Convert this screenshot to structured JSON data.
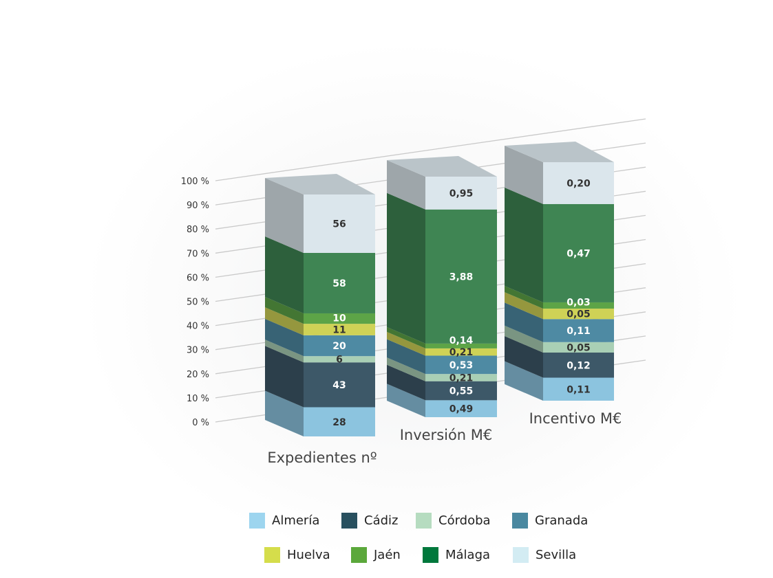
{
  "chart_data": {
    "type": "bar",
    "stacked": true,
    "normalized": true,
    "three_d": true,
    "y_ticks": [
      "0 %",
      "10 %",
      "20 %",
      "30 %",
      "40 %",
      "50 %",
      "60 %",
      "70 %",
      "80 %",
      "90 %",
      "100 %"
    ],
    "ylim": [
      0,
      100
    ],
    "grid": true,
    "legend_position": "bottom",
    "categories": [
      "Expedientes nº",
      "Inversión M€",
      "Incentivo M€"
    ],
    "series": [
      {
        "name": "Almería",
        "color": "#9dd5ef",
        "bar_color": "#8cc4df",
        "values": [
          28,
          0.49,
          0.11
        ],
        "labels": [
          "28",
          "0,49",
          "0,11"
        ],
        "label_color": "#333"
      },
      {
        "name": "Cádiz",
        "color": "#28505f",
        "bar_color": "#3d5868",
        "values": [
          43,
          0.55,
          0.12
        ],
        "labels": [
          "43",
          "0,55",
          "0,12"
        ],
        "label_color": "#fff"
      },
      {
        "name": "Córdoba",
        "color": "#b6dcc0",
        "bar_color": "#a9cfb5",
        "values": [
          6,
          0.21,
          0.05
        ],
        "labels": [
          "6",
          "0,21",
          "0,05"
        ],
        "label_color": "#333"
      },
      {
        "name": "Granada",
        "color": "#4a88a0",
        "bar_color": "#4e8aa3",
        "values": [
          20,
          0.53,
          0.11
        ],
        "labels": [
          "20",
          "0,53",
          "0,11"
        ],
        "label_color": "#fff"
      },
      {
        "name": "Huelva",
        "color": "#d5dd4b",
        "bar_color": "#cfd256",
        "values": [
          11,
          0.21,
          0.05
        ],
        "labels": [
          "11",
          "0,21",
          "0,05"
        ],
        "label_color": "#333"
      },
      {
        "name": "Jaén",
        "color": "#5ba83b",
        "bar_color": "#5da447",
        "values": [
          10,
          0.14,
          0.03
        ],
        "labels": [
          "10",
          "0,14",
          "0,03"
        ],
        "label_color": "#fff"
      },
      {
        "name": "Málaga",
        "color": "#00783c",
        "bar_color": "#3f8553",
        "values": [
          58,
          3.88,
          0.47
        ],
        "labels": [
          "58",
          "3,88",
          "0,47"
        ],
        "label_color": "#fff"
      },
      {
        "name": "Sevilla",
        "color": "#d3ecf3",
        "bar_color": "#dbe6ec",
        "values": [
          56,
          0.95,
          0.2
        ],
        "labels": [
          "56",
          "0,95",
          "0,20"
        ],
        "label_color": "#333"
      }
    ]
  }
}
